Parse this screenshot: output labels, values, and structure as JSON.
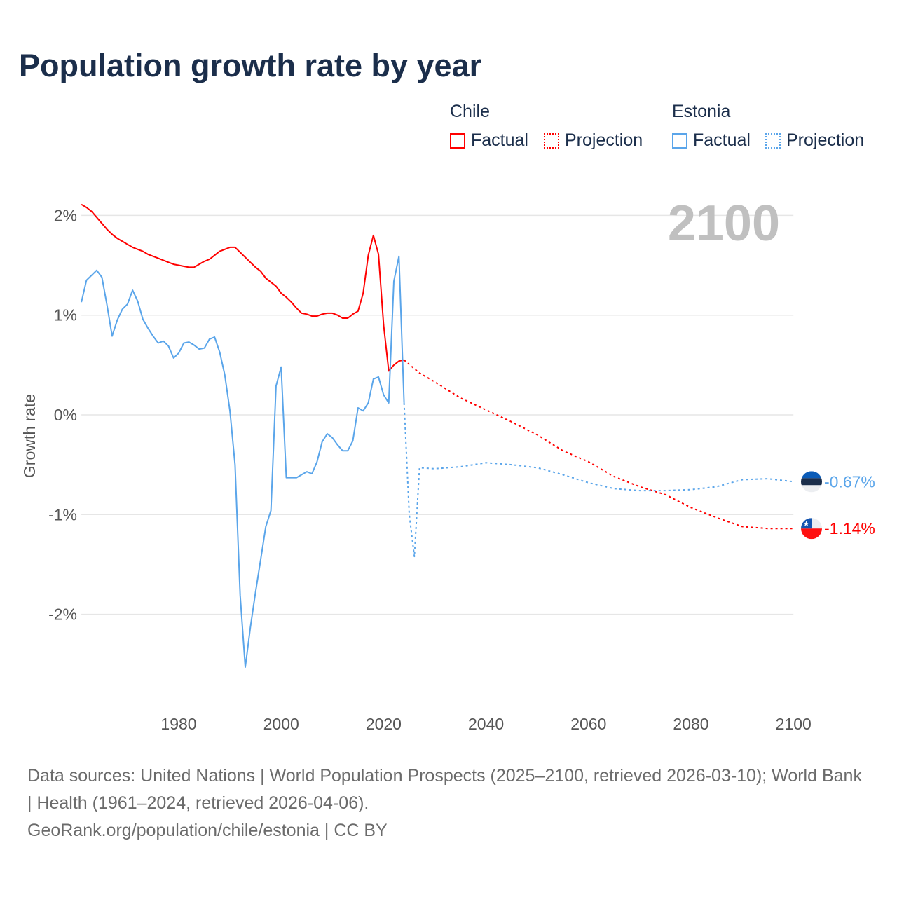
{
  "title": "Population growth rate by year",
  "legend": {
    "groups": [
      {
        "name": "Chile",
        "color": "#ff0000",
        "items": [
          "Factual",
          "Projection"
        ]
      },
      {
        "name": "Estonia",
        "color": "#5aa5ea",
        "items": [
          "Factual",
          "Projection"
        ]
      }
    ]
  },
  "footer": {
    "sources": "Data sources: United Nations | World Population Prospects (2025–2100, retrieved 2026-03-10); World Bank | Health (1961–2024, retrieved 2026-04-06).",
    "link": "GeoRank.org/population/chile/estonia | CC BY"
  },
  "chart_data": {
    "type": "line",
    "title": "Population growth rate by year",
    "ylabel": "Growth rate",
    "xlabel": "",
    "xlim": [
      1961,
      2100
    ],
    "ylim": [
      -2.8,
      2.3
    ],
    "x_ticks": [
      1980,
      2000,
      2020,
      2040,
      2060,
      2080,
      2100
    ],
    "x_tick_labels": [
      "1980",
      "2000",
      "2020",
      "2040",
      "2060",
      "2080",
      "2100"
    ],
    "y_ticks": [
      2,
      1,
      0,
      -1,
      -2
    ],
    "y_tick_labels": [
      "2%",
      "1%",
      "0%",
      "-1%",
      "-2%"
    ],
    "grid": true,
    "year_label": "2100",
    "series": [
      {
        "name": "Chile Factual",
        "color": "#ff0000",
        "style": "solid",
        "x": [
          1961,
          1962,
          1963,
          1964,
          1965,
          1966,
          1967,
          1968,
          1969,
          1970,
          1971,
          1972,
          1973,
          1974,
          1975,
          1976,
          1977,
          1978,
          1979,
          1980,
          1981,
          1982,
          1983,
          1984,
          1985,
          1986,
          1987,
          1988,
          1989,
          1990,
          1991,
          1992,
          1993,
          1994,
          1995,
          1996,
          1997,
          1998,
          1999,
          2000,
          2001,
          2002,
          2003,
          2004,
          2005,
          2006,
          2007,
          2008,
          2009,
          2010,
          2011,
          2012,
          2013,
          2014,
          2015,
          2016,
          2017,
          2018,
          2019,
          2020,
          2021,
          2022,
          2023,
          2024
        ],
        "y": [
          2.11,
          2.08,
          2.04,
          1.98,
          1.92,
          1.86,
          1.81,
          1.77,
          1.74,
          1.71,
          1.68,
          1.66,
          1.64,
          1.61,
          1.59,
          1.57,
          1.55,
          1.53,
          1.51,
          1.5,
          1.49,
          1.48,
          1.48,
          1.51,
          1.54,
          1.56,
          1.6,
          1.64,
          1.66,
          1.68,
          1.68,
          1.63,
          1.58,
          1.53,
          1.48,
          1.44,
          1.37,
          1.33,
          1.29,
          1.22,
          1.18,
          1.13,
          1.07,
          1.02,
          1.01,
          0.99,
          0.99,
          1.01,
          1.02,
          1.02,
          1.0,
          0.97,
          0.97,
          1.01,
          1.04,
          1.22,
          1.6,
          1.8,
          1.61,
          0.9,
          0.44,
          0.5,
          0.54,
          0.55
        ]
      },
      {
        "name": "Chile Projection",
        "color": "#ff0000",
        "style": "dotted",
        "x": [
          2024,
          2027,
          2030,
          2035,
          2040,
          2045,
          2050,
          2055,
          2060,
          2065,
          2070,
          2075,
          2080,
          2085,
          2090,
          2095,
          2100
        ],
        "y": [
          0.55,
          0.42,
          0.33,
          0.17,
          0.05,
          -0.07,
          -0.2,
          -0.36,
          -0.47,
          -0.62,
          -0.72,
          -0.8,
          -0.93,
          -1.03,
          -1.12,
          -1.14,
          -1.14
        ]
      },
      {
        "name": "Estonia Factual",
        "color": "#5aa5ea",
        "style": "solid",
        "x": [
          1961,
          1962,
          1963,
          1964,
          1965,
          1966,
          1967,
          1968,
          1969,
          1970,
          1971,
          1972,
          1973,
          1974,
          1975,
          1976,
          1977,
          1978,
          1979,
          1980,
          1981,
          1982,
          1983,
          1984,
          1985,
          1986,
          1987,
          1988,
          1989,
          1990,
          1991,
          1992,
          1993,
          1994,
          1995,
          1996,
          1997,
          1998,
          1999,
          2000,
          2001,
          2002,
          2003,
          2004,
          2005,
          2006,
          2007,
          2008,
          2009,
          2010,
          2011,
          2012,
          2013,
          2014,
          2015,
          2016,
          2017,
          2018,
          2019,
          2020,
          2021,
          2022,
          2023,
          2024
        ],
        "y": [
          1.13,
          1.35,
          1.4,
          1.45,
          1.38,
          1.1,
          0.79,
          0.95,
          1.06,
          1.11,
          1.25,
          1.14,
          0.96,
          0.87,
          0.79,
          0.72,
          0.74,
          0.69,
          0.57,
          0.62,
          0.72,
          0.73,
          0.7,
          0.66,
          0.67,
          0.76,
          0.78,
          0.63,
          0.4,
          0.04,
          -0.5,
          -1.81,
          -2.53,
          -2.13,
          -1.78,
          -1.45,
          -1.12,
          -0.96,
          0.29,
          0.48,
          -0.63,
          -0.63,
          -0.63,
          -0.6,
          -0.57,
          -0.59,
          -0.47,
          -0.27,
          -0.19,
          -0.23,
          -0.3,
          -0.36,
          -0.36,
          -0.26,
          0.07,
          0.04,
          0.12,
          0.36,
          0.38,
          0.2,
          0.12,
          1.34,
          1.59,
          0.12
        ]
      },
      {
        "name": "Estonia Projection",
        "color": "#5aa5ea",
        "style": "dotted",
        "x": [
          2024,
          2025,
          2026,
          2027,
          2030,
          2035,
          2040,
          2045,
          2050,
          2055,
          2060,
          2065,
          2070,
          2075,
          2080,
          2085,
          2090,
          2095,
          2100
        ],
        "y": [
          0.12,
          -1.0,
          -1.42,
          -0.53,
          -0.54,
          -0.52,
          -0.48,
          -0.5,
          -0.53,
          -0.6,
          -0.68,
          -0.74,
          -0.76,
          -0.76,
          -0.75,
          -0.72,
          -0.65,
          -0.64,
          -0.67
        ]
      }
    ],
    "end_labels": [
      {
        "country": "Estonia",
        "value": "-0.67%",
        "color": "#5aa5ea"
      },
      {
        "country": "Chile",
        "value": "-1.14%",
        "color": "#ff0000"
      }
    ]
  }
}
